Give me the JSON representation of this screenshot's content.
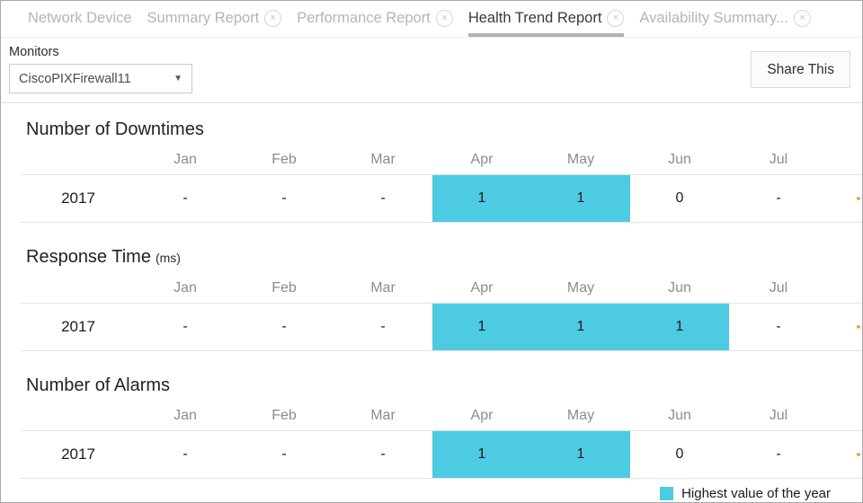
{
  "tabs": [
    {
      "label": "Network Device",
      "closable": false,
      "active": false
    },
    {
      "label": "Summary Report",
      "closable": true,
      "active": false
    },
    {
      "label": "Performance Report",
      "closable": true,
      "active": false
    },
    {
      "label": "Health Trend Report",
      "closable": true,
      "active": true
    },
    {
      "label": "Availability Summary...",
      "closable": true,
      "active": false
    }
  ],
  "toolbar": {
    "monitors_label": "Monitors",
    "selected_monitor": "CiscoPIXFirewall11",
    "share_button": "Share This"
  },
  "months": [
    "Jan",
    "Feb",
    "Mar",
    "Apr",
    "May",
    "Jun",
    "Jul"
  ],
  "sections": [
    {
      "title": "Number of Downtimes",
      "unit": "",
      "rows": [
        {
          "year": "2017",
          "values": [
            "-",
            "-",
            "-",
            "1",
            "1",
            "0",
            "-"
          ],
          "highlighted": [
            false,
            false,
            false,
            true,
            true,
            false,
            false
          ]
        }
      ]
    },
    {
      "title": "Response Time",
      "unit": "(ms)",
      "rows": [
        {
          "year": "2017",
          "values": [
            "-",
            "-",
            "-",
            "1",
            "1",
            "1",
            "-"
          ],
          "highlighted": [
            false,
            false,
            false,
            true,
            true,
            true,
            false
          ]
        }
      ]
    },
    {
      "title": "Number of Alarms",
      "unit": "",
      "rows": [
        {
          "year": "2017",
          "values": [
            "-",
            "-",
            "-",
            "1",
            "1",
            "0",
            "-"
          ],
          "highlighted": [
            false,
            false,
            false,
            true,
            true,
            false,
            false
          ]
        }
      ]
    }
  ],
  "legend": {
    "label": "Highest value of the year"
  },
  "colors": {
    "highlight": "#4ccbe3",
    "edge_marker": "#ef9a3d",
    "active_tab_underline": "#b3b3b3"
  }
}
